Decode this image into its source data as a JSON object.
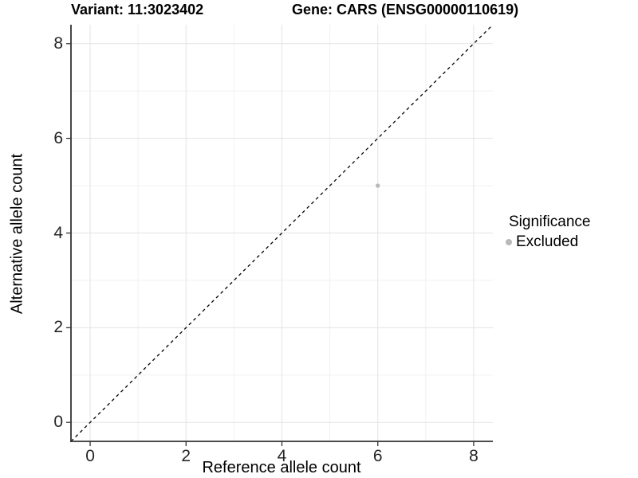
{
  "titles": {
    "variant": "Variant: 11:3023402",
    "gene": "Gene: CARS (ENSG00000110619)"
  },
  "axes": {
    "x_label": "Reference allele count",
    "y_label": "Alternative allele count"
  },
  "legend": {
    "title": "Significance",
    "entries": [
      {
        "label": "Excluded",
        "color": "#b9b9b9"
      }
    ]
  },
  "colors": {
    "background": "#ffffff",
    "grid_major": "#e3e3e3",
    "grid_minor": "#f0f0f0",
    "axis_line": "#333333",
    "tick_mark": "#333333",
    "tick_text": "#262626",
    "reference_line": "#000000",
    "point_excluded": "#b9b9b9"
  },
  "chart_data": {
    "type": "scatter",
    "title": "Variant: 11:3023402 — Gene: CARS (ENSG00000110619)",
    "xlabel": "Reference allele count",
    "ylabel": "Alternative allele count",
    "xlim": [
      -0.4,
      8.4
    ],
    "ylim": [
      -0.4,
      8.4
    ],
    "x_ticks": [
      0,
      2,
      4,
      6,
      8
    ],
    "y_ticks": [
      0,
      2,
      4,
      6,
      8
    ],
    "x_minor_ticks": [
      1,
      3,
      5,
      7
    ],
    "y_minor_ticks": [
      1,
      3,
      5,
      7
    ],
    "grid": true,
    "legend_position": "right",
    "series": [
      {
        "name": "Excluded",
        "color": "#b9b9b9",
        "points": [
          {
            "x": 6,
            "y": 5
          }
        ]
      }
    ],
    "reference_line": {
      "type": "identity",
      "equation": "y = x",
      "style": "dashed",
      "color": "#000000"
    }
  }
}
